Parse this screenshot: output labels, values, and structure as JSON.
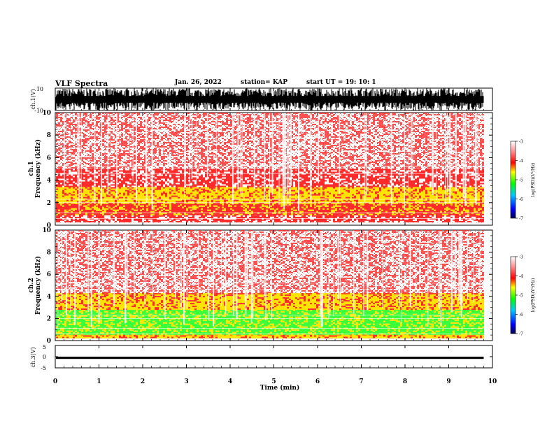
{
  "header": {
    "title": "VLF Spectra",
    "date": "Jan. 26, 2022",
    "station": "station= KAP",
    "start": "start UT =   19: 10: 1"
  },
  "colors": {
    "spectrogram": [
      "#ffffff",
      "#ff2a2a",
      "#ffe400",
      "#3cff3c"
    ],
    "colorbar": [
      "#000050",
      "#0000ff",
      "#00c8ff",
      "#00ff00",
      "#ffff00",
      "#ff0000",
      "#ff9a9a",
      "#ffffff"
    ],
    "trace": "#000000"
  },
  "chart_data": [
    {
      "type": "line",
      "name": "ch1-waveform",
      "ylabel": "ch.1(V)",
      "ylim": [
        -10,
        10
      ],
      "yticks": [
        "10",
        "-10"
      ],
      "xlim": [
        0,
        10
      ],
      "note_level": "waveform fills most of range"
    },
    {
      "type": "heatmap",
      "name": "ch1-spectrogram",
      "ylabel": "ch.1\nFrequency (kHz)",
      "ylabel_lines": [
        "ch.1",
        "Frequency (kHz)"
      ],
      "ylim": [
        0,
        10
      ],
      "yticks": [
        "0",
        "2",
        "4",
        "6",
        "8",
        "10"
      ],
      "xlim": [
        0,
        9.8
      ],
      "bands_khz": [
        {
          "from": 0.3,
          "to": 1.0,
          "level": "red"
        },
        {
          "from": 1.0,
          "to": 2.0,
          "level": "red-yellow"
        },
        {
          "from": 2.0,
          "to": 3.5,
          "level": "yellow"
        },
        {
          "from": 3.5,
          "to": 5.0,
          "level": "red"
        },
        {
          "from": 5.0,
          "to": 10.0,
          "level": "sparse-red"
        }
      ],
      "colorbar": {
        "label": "log(PSD)(V²/Hz)",
        "range": [
          -7,
          -3
        ],
        "ticks": [
          "-3",
          "-4",
          "-5",
          "-6",
          "-7"
        ]
      }
    },
    {
      "type": "heatmap",
      "name": "ch2-spectrogram",
      "ylabel": "ch.2\nFrequency (kHz)",
      "ylabel_lines": [
        "ch.2",
        "Frequency (kHz)"
      ],
      "ylim": [
        0,
        10
      ],
      "yticks": [
        "0",
        "2",
        "4",
        "6",
        "8",
        "10"
      ],
      "xlim": [
        0,
        9.8
      ],
      "bands_khz": [
        {
          "from": 0.2,
          "to": 0.6,
          "level": "yellow"
        },
        {
          "from": 0.6,
          "to": 2.8,
          "level": "green"
        },
        {
          "from": 2.8,
          "to": 4.3,
          "level": "yellow-red"
        },
        {
          "from": 4.3,
          "to": 10.0,
          "level": "sparse-red"
        }
      ],
      "colorbar": {
        "label": "log(PSD)(V²/Hz)",
        "range": [
          -7,
          -3
        ],
        "ticks": [
          "-3",
          "-4",
          "-5",
          "-6",
          "-7"
        ]
      }
    },
    {
      "type": "line",
      "name": "ch3-waveform",
      "ylabel": "ch.3(V)",
      "ylim": [
        -5,
        5
      ],
      "yticks": [
        "5",
        "0",
        "-5"
      ],
      "xlim": [
        0,
        10
      ],
      "level": [
        -1,
        0
      ]
    }
  ],
  "xaxis": {
    "label": "Time (min)",
    "range": [
      0,
      10
    ],
    "ticks": [
      "0",
      "1",
      "2",
      "3",
      "4",
      "5",
      "6",
      "7",
      "8",
      "9",
      "10"
    ]
  }
}
